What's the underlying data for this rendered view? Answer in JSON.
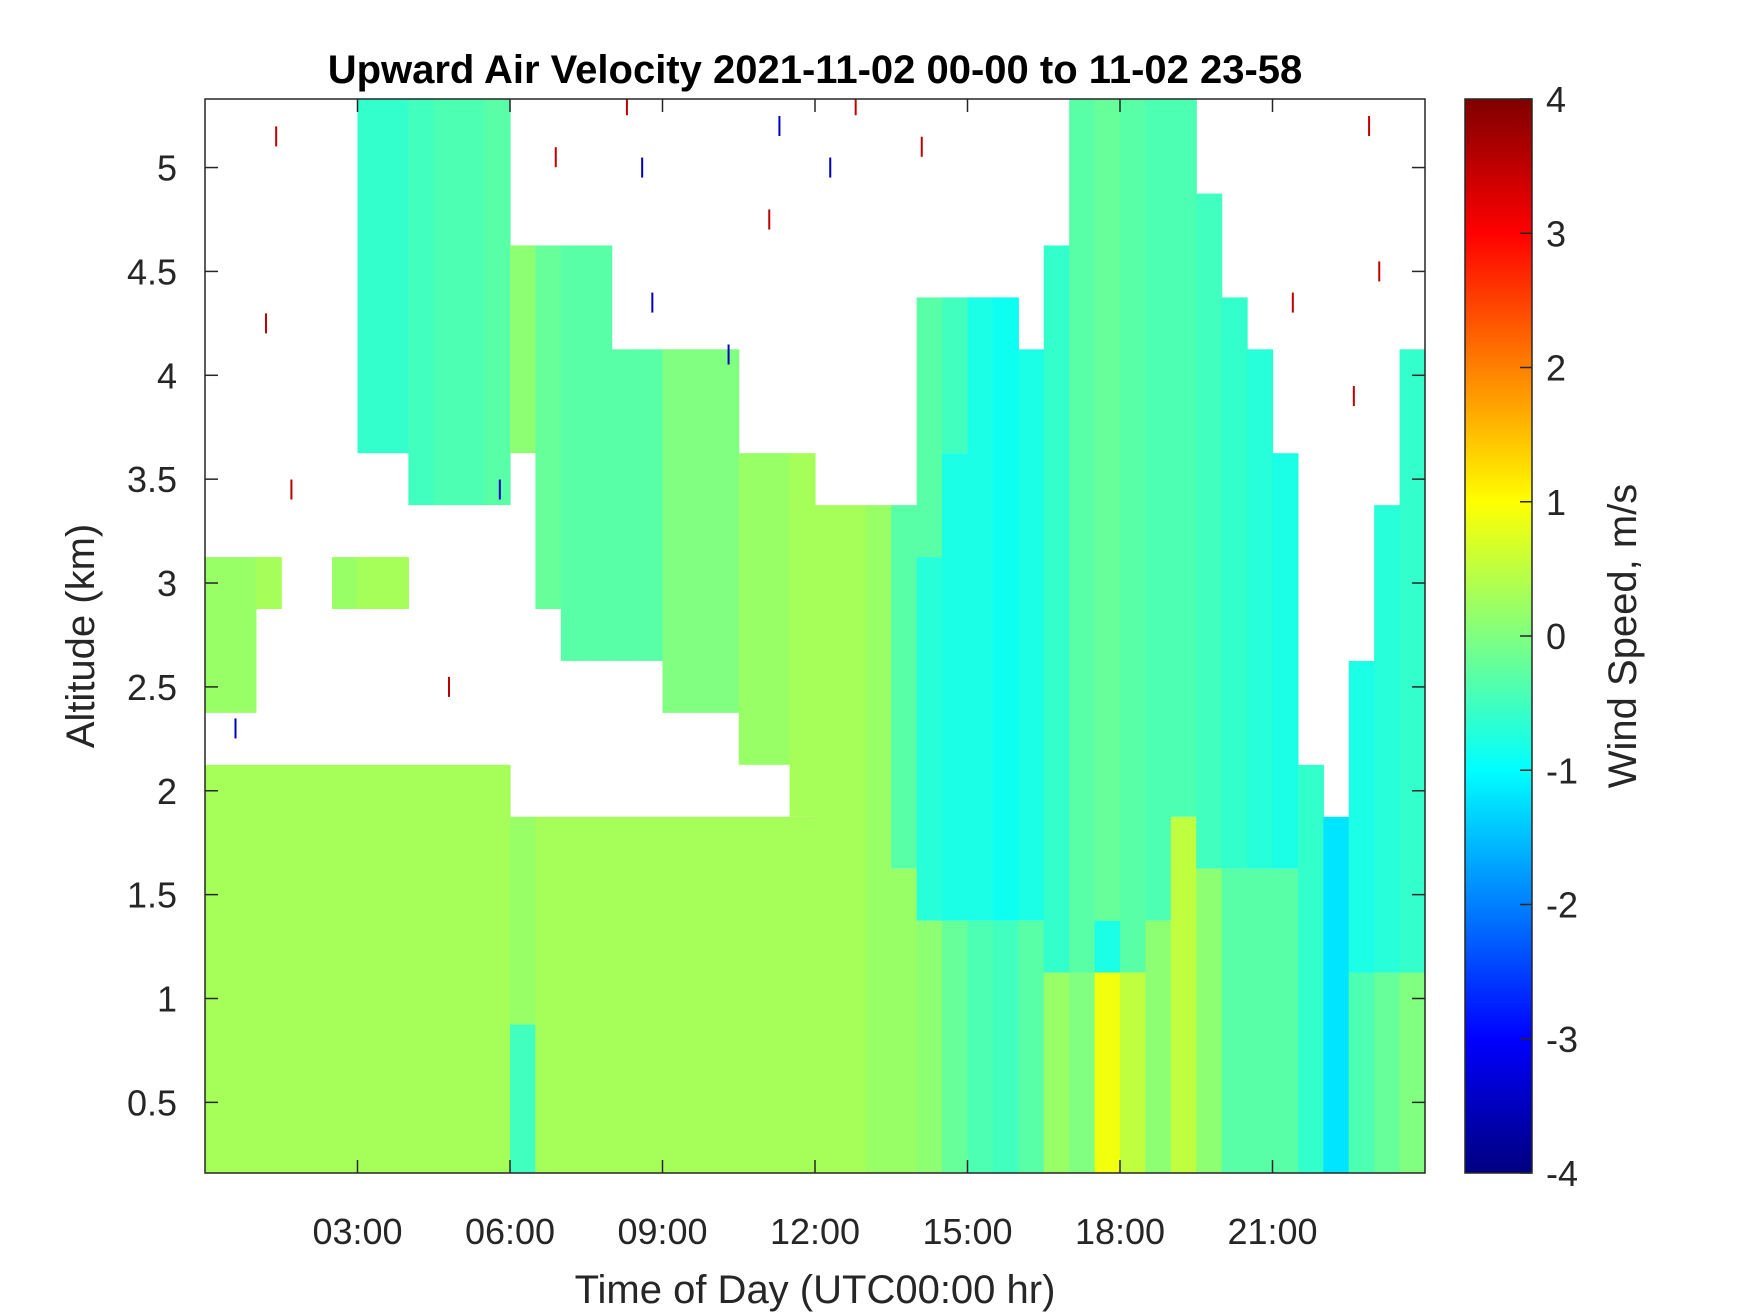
{
  "chart_data": {
    "type": "heatmap",
    "title": "Upward Air Velocity 2021-11-02 00-00 to 11-02 23-58",
    "xlabel": "Time of Day (UTC00:00 hr)",
    "ylabel": "Altitude (km)",
    "colorbar_label": "Wind Speed, m/s",
    "colormap": "jet",
    "xlim": [
      0,
      24
    ],
    "ylim": [
      0.16,
      5.33
    ],
    "clim": [
      -4,
      4
    ],
    "x_ticks": [
      3,
      6,
      9,
      12,
      15,
      18,
      21
    ],
    "x_tick_labels": [
      "03:00",
      "06:00",
      "09:00",
      "12:00",
      "15:00",
      "18:00",
      "21:00"
    ],
    "y_ticks": [
      0.5,
      1,
      1.5,
      2,
      2.5,
      3,
      3.5,
      4,
      4.5,
      5
    ],
    "y_tick_labels": [
      "0.5",
      "1",
      "1.5",
      "2",
      "2.5",
      "3",
      "3.5",
      "4",
      "4.5",
      "5"
    ],
    "colorbar_ticks": [
      4,
      3,
      2,
      1,
      0,
      -1,
      -2,
      -3,
      -4
    ],
    "colorbar_tick_labels": [
      "4",
      "3",
      "2",
      "1",
      "0",
      "-1",
      "-2",
      "-3",
      "-4"
    ],
    "x_bin_hours": 0.5,
    "y_bin_km": 0.25,
    "columns": [
      {
        "t": 0.25,
        "segments": [
          [
            0.25,
            2.0,
            0.3
          ],
          [
            2.5,
            3.0,
            0.2
          ]
        ]
      },
      {
        "t": 0.75,
        "segments": [
          [
            0.25,
            2.0,
            0.3
          ],
          [
            2.5,
            3.0,
            0.2
          ]
        ]
      },
      {
        "t": 1.25,
        "segments": [
          [
            0.25,
            2.0,
            0.3
          ],
          [
            3.0,
            3.0,
            0.3
          ]
        ]
      },
      {
        "t": 1.75,
        "segments": [
          [
            0.25,
            2.0,
            0.3
          ]
        ]
      },
      {
        "t": 2.25,
        "segments": [
          [
            0.25,
            2.0,
            0.3
          ]
        ]
      },
      {
        "t": 2.75,
        "segments": [
          [
            0.25,
            2.0,
            0.3
          ],
          [
            3.0,
            3.0,
            0.2
          ]
        ]
      },
      {
        "t": 3.25,
        "segments": [
          [
            0.25,
            2.0,
            0.3
          ],
          [
            3.0,
            3.0,
            0.3
          ],
          [
            3.75,
            5.25,
            -0.6
          ]
        ]
      },
      {
        "t": 3.75,
        "segments": [
          [
            0.25,
            2.0,
            0.3
          ],
          [
            3.0,
            3.0,
            0.3
          ],
          [
            3.75,
            5.25,
            -0.6
          ]
        ]
      },
      {
        "t": 4.25,
        "segments": [
          [
            0.25,
            2.0,
            0.3
          ],
          [
            3.5,
            5.25,
            -0.5
          ]
        ]
      },
      {
        "t": 4.75,
        "segments": [
          [
            0.25,
            2.0,
            0.3
          ],
          [
            3.5,
            5.25,
            -0.4
          ]
        ]
      },
      {
        "t": 5.25,
        "segments": [
          [
            0.25,
            2.0,
            0.3
          ],
          [
            3.5,
            5.25,
            -0.4
          ]
        ]
      },
      {
        "t": 5.75,
        "segments": [
          [
            0.25,
            2.0,
            0.3
          ],
          [
            3.5,
            5.25,
            -0.3
          ]
        ]
      },
      {
        "t": 6.25,
        "segments": [
          [
            0.25,
            0.75,
            -0.5
          ],
          [
            1.0,
            1.75,
            0.2
          ],
          [
            3.75,
            4.5,
            0.1
          ]
        ]
      },
      {
        "t": 6.75,
        "segments": [
          [
            0.25,
            1.75,
            0.3
          ],
          [
            3.0,
            4.5,
            -0.2
          ]
        ]
      },
      {
        "t": 7.25,
        "segments": [
          [
            0.25,
            1.75,
            0.3
          ],
          [
            2.75,
            4.5,
            -0.3
          ]
        ]
      },
      {
        "t": 7.75,
        "segments": [
          [
            0.25,
            1.75,
            0.3
          ],
          [
            2.75,
            4.5,
            -0.3
          ]
        ]
      },
      {
        "t": 8.25,
        "segments": [
          [
            0.25,
            1.75,
            0.3
          ],
          [
            2.75,
            4.0,
            -0.3
          ]
        ]
      },
      {
        "t": 8.75,
        "segments": [
          [
            0.25,
            1.75,
            0.3
          ],
          [
            2.75,
            4.0,
            -0.3
          ]
        ]
      },
      {
        "t": 9.25,
        "segments": [
          [
            0.25,
            1.75,
            0.3
          ],
          [
            2.5,
            4.0,
            0.0
          ]
        ]
      },
      {
        "t": 9.75,
        "segments": [
          [
            0.25,
            1.75,
            0.3
          ],
          [
            2.5,
            4.0,
            0.0
          ]
        ]
      },
      {
        "t": 10.25,
        "segments": [
          [
            0.25,
            1.75,
            0.3
          ],
          [
            2.5,
            4.0,
            0.0
          ]
        ]
      },
      {
        "t": 10.75,
        "segments": [
          [
            0.25,
            1.75,
            0.3
          ],
          [
            2.25,
            3.5,
            0.2
          ]
        ]
      },
      {
        "t": 11.25,
        "segments": [
          [
            0.25,
            1.75,
            0.3
          ],
          [
            2.25,
            3.5,
            0.2
          ]
        ]
      },
      {
        "t": 11.75,
        "segments": [
          [
            0.25,
            1.75,
            0.3
          ],
          [
            2.0,
            3.5,
            0.3
          ]
        ]
      },
      {
        "t": 12.25,
        "segments": [
          [
            0.25,
            3.25,
            0.3
          ]
        ]
      },
      {
        "t": 12.75,
        "segments": [
          [
            0.25,
            3.25,
            0.3
          ]
        ]
      },
      {
        "t": 13.25,
        "segments": [
          [
            0.25,
            3.25,
            0.2
          ]
        ]
      },
      {
        "t": 13.75,
        "segments": [
          [
            0.25,
            1.5,
            0.2
          ],
          [
            1.75,
            3.25,
            -0.3
          ]
        ]
      },
      {
        "t": 14.25,
        "segments": [
          [
            0.25,
            1.25,
            0.1
          ],
          [
            1.5,
            3.0,
            -0.7
          ],
          [
            3.25,
            4.25,
            -0.3
          ]
        ]
      },
      {
        "t": 14.75,
        "segments": [
          [
            0.25,
            1.25,
            -0.2
          ],
          [
            1.5,
            3.5,
            -0.8
          ],
          [
            3.75,
            4.25,
            -0.5
          ]
        ]
      },
      {
        "t": 15.25,
        "segments": [
          [
            0.25,
            1.25,
            -0.4
          ],
          [
            1.5,
            4.25,
            -0.8
          ]
        ]
      },
      {
        "t": 15.75,
        "segments": [
          [
            0.25,
            1.25,
            -0.5
          ],
          [
            1.5,
            4.25,
            -0.9
          ]
        ]
      },
      {
        "t": 16.25,
        "segments": [
          [
            0.25,
            1.25,
            -0.3
          ],
          [
            1.5,
            4.0,
            -0.8
          ]
        ]
      },
      {
        "t": 16.75,
        "segments": [
          [
            0.25,
            1.0,
            0.2
          ],
          [
            1.25,
            4.5,
            -0.6
          ]
        ]
      },
      {
        "t": 17.25,
        "segments": [
          [
            0.25,
            1.0,
            0.0
          ],
          [
            1.25,
            5.25,
            -0.3
          ]
        ]
      },
      {
        "t": 17.75,
        "segments": [
          [
            0.25,
            1.0,
            0.9
          ],
          [
            1.25,
            1.25,
            -0.8
          ],
          [
            1.5,
            5.25,
            -0.2
          ]
        ]
      },
      {
        "t": 18.25,
        "segments": [
          [
            0.25,
            1.0,
            0.5
          ],
          [
            1.25,
            5.25,
            -0.3
          ]
        ]
      },
      {
        "t": 18.75,
        "segments": [
          [
            0.25,
            1.25,
            0.1
          ],
          [
            1.5,
            5.25,
            -0.4
          ]
        ]
      },
      {
        "t": 19.25,
        "segments": [
          [
            0.25,
            1.75,
            0.5
          ],
          [
            2.0,
            5.25,
            -0.4
          ]
        ]
      },
      {
        "t": 19.75,
        "segments": [
          [
            0.25,
            1.5,
            0.1
          ],
          [
            1.75,
            4.75,
            -0.5
          ]
        ]
      },
      {
        "t": 20.25,
        "segments": [
          [
            0.25,
            1.5,
            -0.3
          ],
          [
            1.75,
            4.25,
            -0.6
          ]
        ]
      },
      {
        "t": 20.75,
        "segments": [
          [
            0.25,
            1.5,
            -0.3
          ],
          [
            1.75,
            4.0,
            -0.7
          ]
        ]
      },
      {
        "t": 21.25,
        "segments": [
          [
            0.25,
            1.5,
            -0.3
          ],
          [
            1.75,
            3.5,
            -0.8
          ]
        ]
      },
      {
        "t": 21.75,
        "segments": [
          [
            0.25,
            2.0,
            -0.6
          ]
        ]
      },
      {
        "t": 22.25,
        "segments": [
          [
            0.25,
            1.75,
            -1.2
          ]
        ]
      },
      {
        "t": 22.75,
        "segments": [
          [
            0.25,
            1.0,
            -0.4
          ],
          [
            1.25,
            2.5,
            -0.8
          ]
        ]
      },
      {
        "t": 23.25,
        "segments": [
          [
            0.25,
            1.0,
            -0.2
          ],
          [
            1.25,
            3.25,
            -0.7
          ]
        ]
      },
      {
        "t": 23.75,
        "segments": [
          [
            0.25,
            1.0,
            0.0
          ],
          [
            1.25,
            4.0,
            -0.6
          ]
        ]
      }
    ],
    "outliers": [
      {
        "t": 1.4,
        "alt": 5.15,
        "v": 3.5
      },
      {
        "t": 1.2,
        "alt": 4.25,
        "v": 3.5
      },
      {
        "t": 1.7,
        "alt": 3.45,
        "v": 3.5
      },
      {
        "t": 0.6,
        "alt": 2.3,
        "v": -3.5
      },
      {
        "t": 4.8,
        "alt": 2.5,
        "v": 3.5
      },
      {
        "t": 6.9,
        "alt": 5.05,
        "v": 3.5
      },
      {
        "t": 8.3,
        "alt": 5.3,
        "v": 3.5
      },
      {
        "t": 8.6,
        "alt": 5.0,
        "v": -3.5
      },
      {
        "t": 8.8,
        "alt": 4.35,
        "v": -3.5
      },
      {
        "t": 10.3,
        "alt": 4.1,
        "v": -3.5
      },
      {
        "t": 11.1,
        "alt": 4.75,
        "v": 3.5
      },
      {
        "t": 11.3,
        "alt": 5.2,
        "v": -3.5
      },
      {
        "t": 12.3,
        "alt": 5.0,
        "v": -3.5
      },
      {
        "t": 12.8,
        "alt": 5.3,
        "v": 3.5
      },
      {
        "t": 14.1,
        "alt": 5.1,
        "v": 3.5
      },
      {
        "t": 22.6,
        "alt": 3.9,
        "v": 3.5
      },
      {
        "t": 23.1,
        "alt": 4.5,
        "v": 3.5
      },
      {
        "t": 22.9,
        "alt": 5.2,
        "v": 3.5
      },
      {
        "t": 21.4,
        "alt": 4.35,
        "v": 3.5
      },
      {
        "t": 5.8,
        "alt": 3.45,
        "v": -3.5
      }
    ]
  }
}
